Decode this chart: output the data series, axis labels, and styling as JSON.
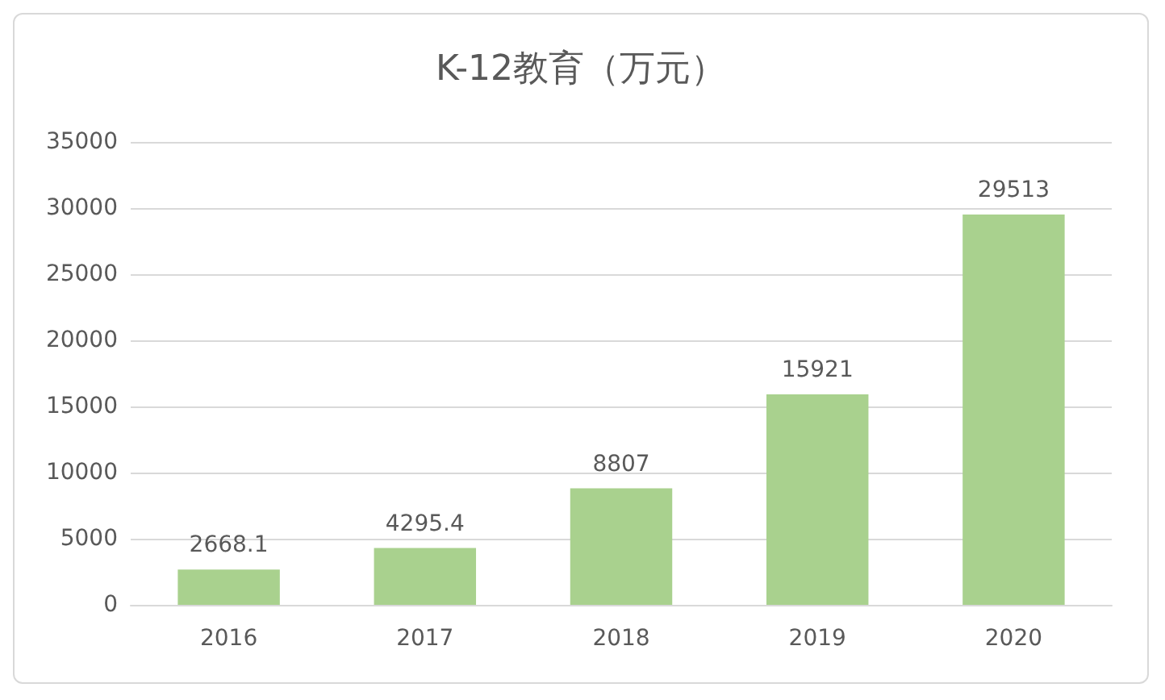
{
  "chart_data": {
    "type": "bar",
    "title": "K-12教育（万元）",
    "categories": [
      "2016",
      "2017",
      "2018",
      "2019",
      "2020"
    ],
    "values": [
      2668.1,
      4295.4,
      8807,
      15921,
      29513
    ],
    "color": "#a9d18e",
    "ylim": [
      0,
      35000
    ],
    "yticks": [
      0,
      5000,
      10000,
      15000,
      20000,
      25000,
      30000,
      35000
    ],
    "grid": "y",
    "data_labels": true
  }
}
